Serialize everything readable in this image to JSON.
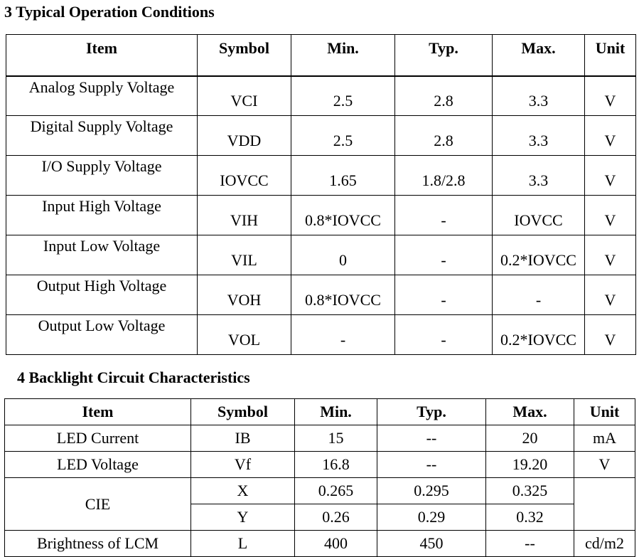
{
  "section3": {
    "title": "3 Typical Operation Conditions",
    "headers": [
      "Item",
      "Symbol",
      "Min.",
      "Typ.",
      "Max.",
      "Unit"
    ],
    "rows": [
      [
        "Analog Supply Voltage",
        "VCI",
        "2.5",
        "2.8",
        "3.3",
        "V"
      ],
      [
        "Digital Supply Voltage",
        "VDD",
        "2.5",
        "2.8",
        "3.3",
        "V"
      ],
      [
        "I/O Supply Voltage",
        "IOVCC",
        "1.65",
        "1.8/2.8",
        "3.3",
        "V"
      ],
      [
        "Input High Voltage",
        "VIH",
        "0.8*IOVCC",
        "-",
        "IOVCC",
        "V"
      ],
      [
        "Input Low Voltage",
        "VIL",
        "0",
        "-",
        "0.2*IOVCC",
        "V"
      ],
      [
        "Output High Voltage",
        "VOH",
        "0.8*IOVCC",
        "-",
        "-",
        "V"
      ],
      [
        "Output Low Voltage",
        "VOL",
        "-",
        "-",
        "0.2*IOVCC",
        "V"
      ]
    ]
  },
  "section4": {
    "title": "4 Backlight Circuit Characteristics",
    "headers": [
      "Item",
      "Symbol",
      "Min.",
      "Typ.",
      "Max.",
      "Unit"
    ],
    "rows": [
      [
        "LED Current",
        "IB",
        "15",
        "--",
        "20",
        "mA"
      ],
      [
        "LED Voltage",
        "Vf",
        "16.8",
        "--",
        "19.20",
        "V"
      ],
      [
        "CIE",
        "X",
        "0.265",
        "0.295",
        "0.325",
        ""
      ],
      [
        "",
        "Y",
        "0.26",
        "0.29",
        "0.32",
        ""
      ],
      [
        "Brightness of LCM",
        "L",
        "400",
        "450",
        "--",
        "cd/m2"
      ]
    ]
  }
}
